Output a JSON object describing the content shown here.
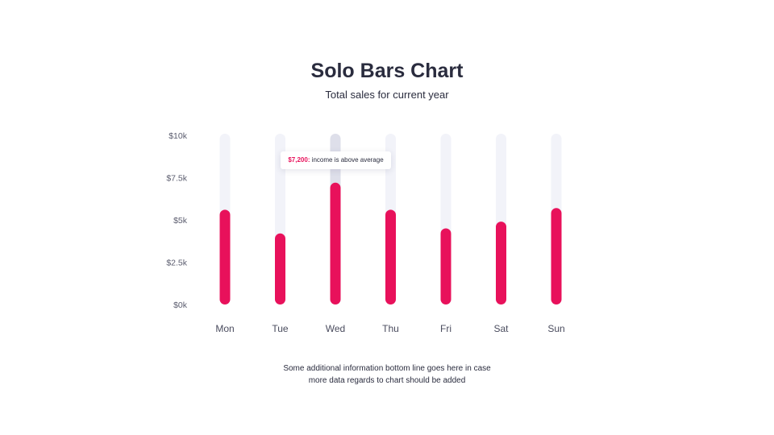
{
  "header": {
    "title": "Solo Bars Chart",
    "subtitle": "Total sales for current year"
  },
  "tooltip": {
    "value": "$7,200:",
    "text": " income is above average"
  },
  "footnote": {
    "line1": "Some additional information bottom line goes here in case",
    "line2": "more data regards to chart should be added"
  },
  "colors": {
    "bar": "#e8115b",
    "track": "#f2f3f9",
    "highlight_track": "#dedfea"
  },
  "chart_data": {
    "type": "bar",
    "categories": [
      "Mon",
      "Tue",
      "Wed",
      "Thu",
      "Fri",
      "Sat",
      "Sun"
    ],
    "values": [
      5.6,
      4.2,
      7.2,
      5.6,
      4.5,
      4.9,
      5.7
    ],
    "highlight_index": 2,
    "yticks": [
      "$0k",
      "$2.5k",
      "$5k",
      "$7.5k",
      "$10k"
    ],
    "ylim": [
      0,
      10
    ],
    "grid": false,
    "legend": "none"
  }
}
